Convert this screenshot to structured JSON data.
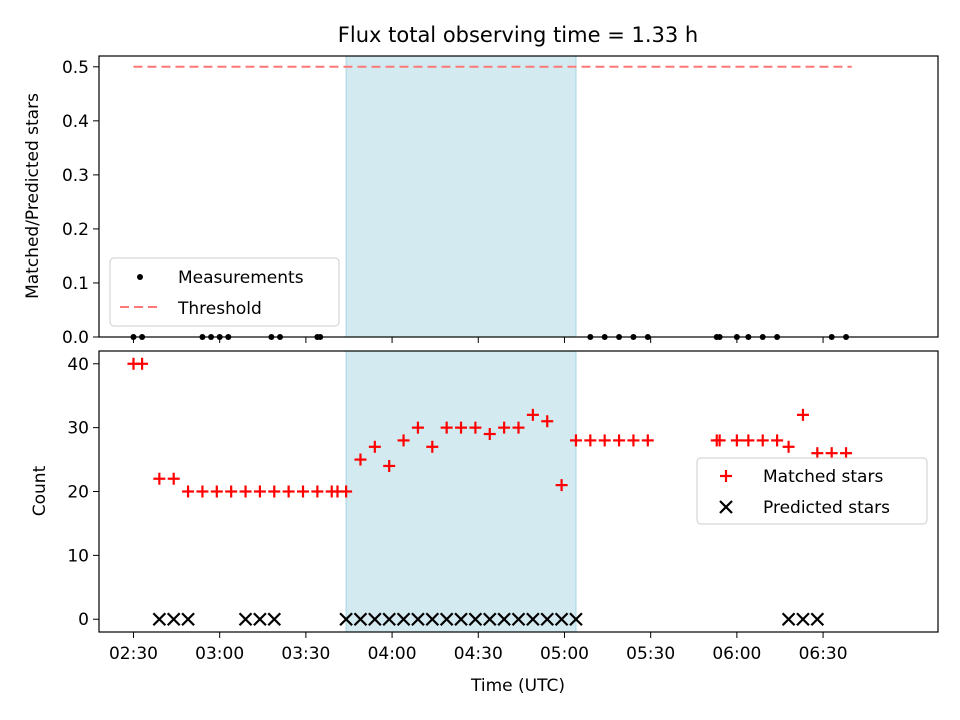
{
  "chart_data": [
    {
      "type": "scatter",
      "title": "Flux total observing time = 1.33 h",
      "ylabel": "Matched/Predicted stars",
      "xlabel": "",
      "xlim": [
        "02:18",
        "07:10"
      ],
      "ylim": [
        0,
        0.52
      ],
      "y_ticks": [
        "0.0",
        "0.1",
        "0.2",
        "0.3",
        "0.4",
        "0.5"
      ],
      "grid": false,
      "legend_position": "lower-left",
      "shaded_interval": [
        "03:44",
        "05:04"
      ],
      "shade_color": "#d3eaf0",
      "series": [
        {
          "name": "Measurements",
          "marker": "dot",
          "color": "#000000",
          "x": [
            "02:30",
            "02:33",
            "02:54",
            "02:57",
            "03:00",
            "03:03",
            "03:18",
            "03:21",
            "03:34",
            "03:35",
            "05:09",
            "05:14",
            "05:19",
            "05:24",
            "05:29",
            "05:53",
            "05:54",
            "06:00",
            "06:04",
            "06:09",
            "06:14",
            "06:33",
            "06:38"
          ],
          "y": [
            0,
            0,
            0,
            0,
            0,
            0,
            0,
            0,
            0,
            0,
            0,
            0,
            0,
            0,
            0,
            0,
            0,
            0,
            0,
            0,
            0,
            0,
            0
          ]
        },
        {
          "name": "Threshold",
          "style": "dashed",
          "color": "#ff7777",
          "x": [
            "02:30",
            "06:40"
          ],
          "y": [
            0.5,
            0.5
          ]
        }
      ]
    },
    {
      "type": "scatter",
      "title": "",
      "ylabel": "Count",
      "xlabel": "Time (UTC)",
      "xlim": [
        "02:18",
        "07:10"
      ],
      "ylim": [
        -2,
        42
      ],
      "y_ticks": [
        "0",
        "10",
        "20",
        "30",
        "40"
      ],
      "x_ticks": [
        "02:30",
        "03:00",
        "03:30",
        "04:00",
        "04:30",
        "05:00",
        "05:30",
        "06:00",
        "06:30"
      ],
      "grid": false,
      "legend_position": "center-right",
      "shaded_interval": [
        "03:44",
        "05:04"
      ],
      "shade_color": "#d3eaf0",
      "series": [
        {
          "name": "Matched stars",
          "marker": "plus",
          "color": "#ff0000",
          "x": [
            "02:30",
            "02:33",
            "02:39",
            "02:44",
            "02:49",
            "02:54",
            "02:59",
            "03:04",
            "03:09",
            "03:14",
            "03:19",
            "03:24",
            "03:29",
            "03:34",
            "03:39",
            "03:41",
            "03:44",
            "03:49",
            "03:54",
            "03:59",
            "04:04",
            "04:09",
            "04:14",
            "04:19",
            "04:24",
            "04:29",
            "04:34",
            "04:39",
            "04:44",
            "04:49",
            "04:54",
            "04:59",
            "05:04",
            "05:09",
            "05:14",
            "05:19",
            "05:24",
            "05:29",
            "05:53",
            "05:54",
            "06:00",
            "06:04",
            "06:09",
            "06:14",
            "06:18",
            "06:23",
            "06:28",
            "06:33",
            "06:38"
          ],
          "y": [
            40,
            40,
            22,
            22,
            20,
            20,
            20,
            20,
            20,
            20,
            20,
            20,
            20,
            20,
            20,
            20,
            20,
            25,
            27,
            24,
            28,
            30,
            27,
            30,
            30,
            30,
            29,
            30,
            30,
            32,
            31,
            21,
            28,
            28,
            28,
            28,
            28,
            28,
            28,
            28,
            28,
            28,
            28,
            28,
            27,
            32,
            26,
            26,
            26
          ]
        },
        {
          "name": "Predicted stars",
          "marker": "x",
          "color": "#000000",
          "x": [
            "02:39",
            "02:44",
            "02:49",
            "03:09",
            "03:14",
            "03:19",
            "03:44",
            "03:49",
            "03:54",
            "03:59",
            "04:04",
            "04:09",
            "04:14",
            "04:19",
            "04:24",
            "04:29",
            "04:34",
            "04:39",
            "04:44",
            "04:49",
            "04:54",
            "04:59",
            "05:04",
            "06:18",
            "06:23",
            "06:28"
          ],
          "y": [
            0,
            0,
            0,
            0,
            0,
            0,
            0,
            0,
            0,
            0,
            0,
            0,
            0,
            0,
            0,
            0,
            0,
            0,
            0,
            0,
            0,
            0,
            0,
            0,
            0,
            0
          ]
        }
      ]
    }
  ]
}
